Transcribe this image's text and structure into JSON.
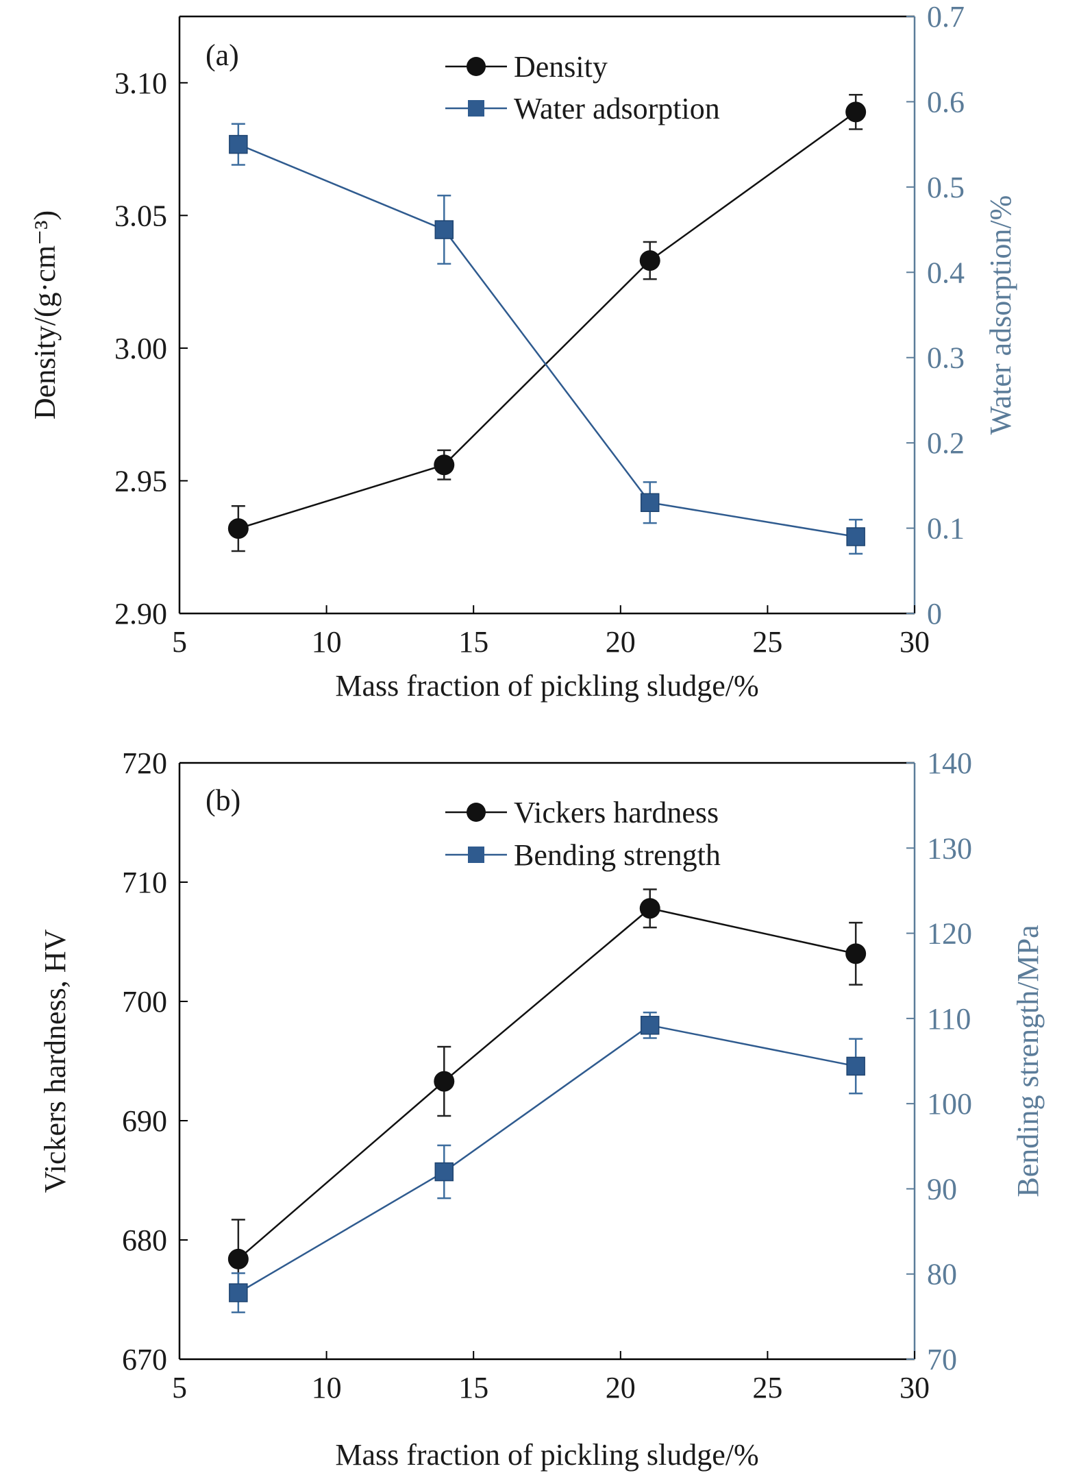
{
  "colors": {
    "left_series": "#111111",
    "right_series": "#2f5b8f",
    "right_axis": "#5b7c99",
    "frame": "#000000"
  },
  "chart_data": [
    {
      "type": "line",
      "panel_label": "(a)",
      "xlabel": "Mass fraction of pickling sludge/%",
      "ylabel_left": "Density/(g·cm⁻³)",
      "ylabel_right": "Water adsorption/%",
      "xlim": [
        5,
        30
      ],
      "ylim_left": [
        2.9,
        3.125
      ],
      "ylim_right": [
        0,
        0.7
      ],
      "xticks": [
        "5",
        "10",
        "15",
        "20",
        "25",
        "30"
      ],
      "yticks_left": [
        "2.90",
        "2.95",
        "3.00",
        "3.05",
        "3.10"
      ],
      "yticks_right": [
        "0",
        "0.1",
        "0.2",
        "0.3",
        "0.4",
        "0.5",
        "0.6",
        "0.7"
      ],
      "x": [
        7,
        14,
        21,
        28
      ],
      "series": [
        {
          "name": "Density",
          "axis": "left",
          "marker": "circle",
          "values": [
            2.932,
            2.956,
            3.033,
            3.089
          ],
          "errors": [
            0.0085,
            0.0055,
            0.007,
            0.0065
          ]
        },
        {
          "name": "Water adsorption",
          "axis": "right",
          "marker": "square",
          "values": [
            0.55,
            0.45,
            0.13,
            0.09
          ],
          "errors": [
            0.024,
            0.04,
            0.024,
            0.02
          ]
        }
      ],
      "legend": "top-center",
      "grid": false
    },
    {
      "type": "line",
      "panel_label": "(b)",
      "xlabel": "Mass fraction of pickling sludge/%",
      "ylabel_left": "Vickers hardness, HV",
      "ylabel_right": "Bending strength/MPa",
      "xlim": [
        5,
        30
      ],
      "ylim_left": [
        670,
        720
      ],
      "ylim_right": [
        70,
        140
      ],
      "xticks": [
        "5",
        "10",
        "15",
        "20",
        "25",
        "30"
      ],
      "yticks_left": [
        "670",
        "680",
        "690",
        "700",
        "710",
        "720"
      ],
      "yticks_right": [
        "70",
        "80",
        "90",
        "100",
        "110",
        "120",
        "130",
        "140"
      ],
      "x": [
        7,
        14,
        21,
        28
      ],
      "series": [
        {
          "name": "Vickers hardness",
          "axis": "left",
          "marker": "circle",
          "values": [
            678.4,
            693.3,
            707.8,
            704
          ],
          "errors": [
            3.3,
            2.9,
            1.6,
            2.6
          ]
        },
        {
          "name": "Bending strength",
          "axis": "right",
          "marker": "square",
          "values": [
            77.8,
            92,
            109.2,
            104.4
          ],
          "errors": [
            2.3,
            3.1,
            1.5,
            3.2
          ]
        }
      ],
      "legend": "top-center",
      "grid": false
    }
  ]
}
